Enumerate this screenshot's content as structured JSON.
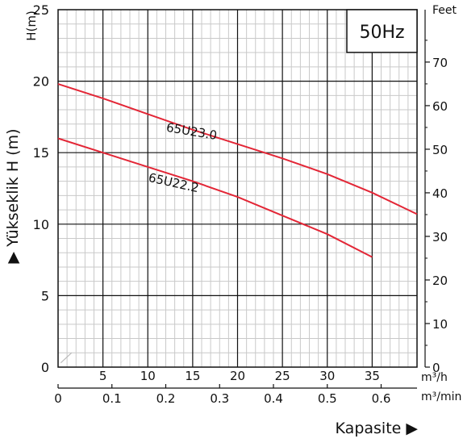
{
  "chart_data": {
    "type": "line",
    "hz_badge": "50Hz",
    "ylabel_short": "H(m)",
    "ylabel_long": "▶ Yükseklik H (m)",
    "feet_label": "Feet",
    "x_unit_top": "m³/h",
    "x_unit_bottom": "m³/min",
    "xlabel": "Kapasite ▶",
    "ylim": [
      0,
      25
    ],
    "xlim": [
      0,
      40
    ],
    "y_ticks": [
      "0",
      "5",
      "10",
      "15",
      "20",
      "25"
    ],
    "x_ticks_m3h": [
      "5",
      "10",
      "15",
      "20",
      "25",
      "30",
      "35"
    ],
    "x_ticks_m3min": [
      "0",
      "0.1",
      "0.2",
      "0.3",
      "0.4",
      "0.5",
      "0.6"
    ],
    "feet_ticks": [
      "0",
      "10",
      "20",
      "30",
      "40",
      "50",
      "60",
      "70"
    ],
    "grid": true,
    "series": [
      {
        "name": "65U23.0",
        "color": "#e32636",
        "x": [
          0,
          5,
          10,
          15,
          20,
          25,
          30,
          35,
          40
        ],
        "y": [
          19.8,
          18.8,
          17.7,
          16.6,
          15.6,
          14.6,
          13.5,
          12.2,
          10.7
        ]
      },
      {
        "name": "65U22.2",
        "color": "#e32636",
        "x": [
          0,
          5,
          10,
          15,
          20,
          25,
          30,
          35
        ],
        "y": [
          16.0,
          15.0,
          14.0,
          13.0,
          11.9,
          10.6,
          9.3,
          7.7
        ]
      }
    ]
  }
}
